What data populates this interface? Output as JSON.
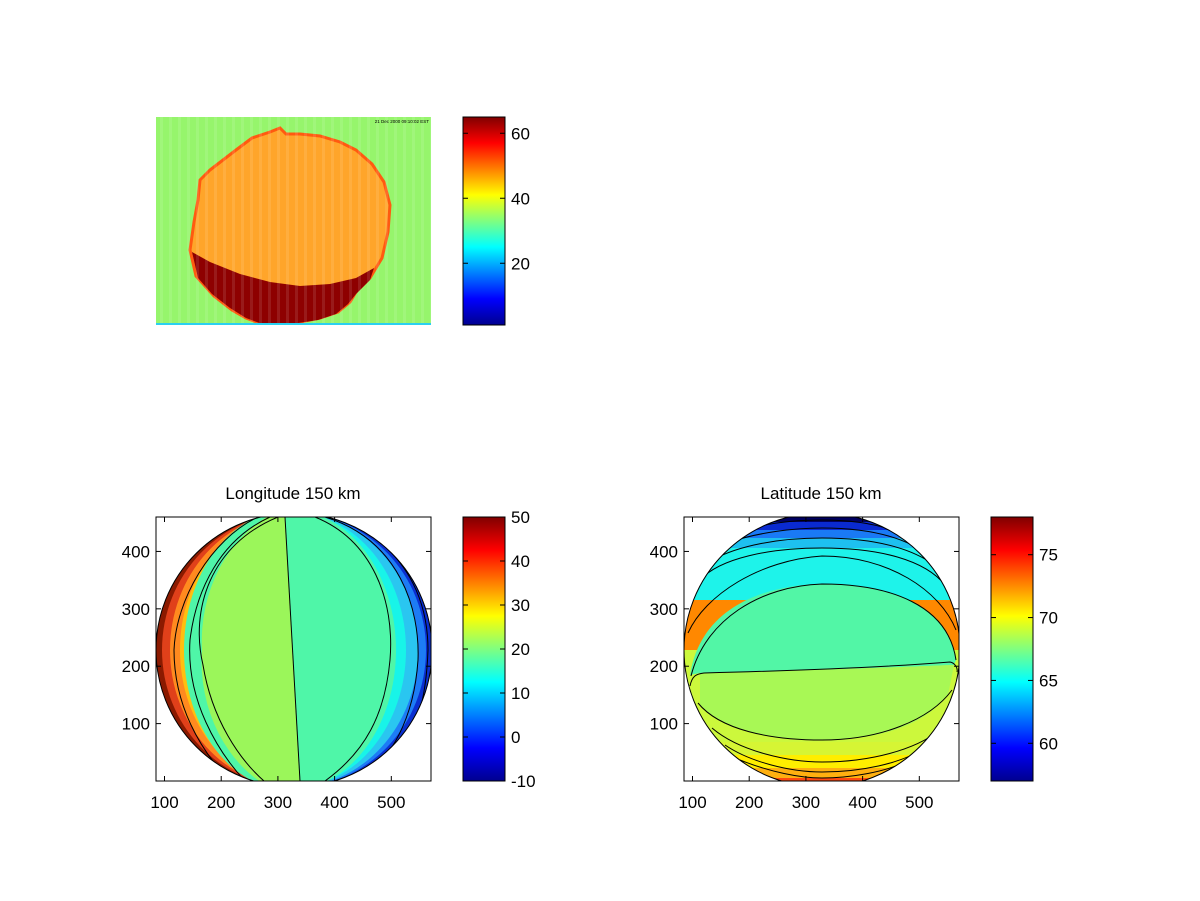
{
  "chart_data": [
    {
      "type": "heatmap",
      "title": "",
      "xlabel": "",
      "ylabel": "",
      "x_ticks": [],
      "y_ticks": [],
      "colorbar": {
        "colormap": "jet",
        "range": [
          1,
          65
        ],
        "ticks": [
          20,
          40,
          60
        ]
      },
      "grid": false,
      "description_values": {
        "background_level": 35,
        "disk_level": 48,
        "edge_high_level": 62,
        "corner_text": "21 Dec 2000 09:10:02 EST"
      }
    },
    {
      "type": "heatmap",
      "title": "Longitude 150 km",
      "xlabel": "",
      "ylabel": "",
      "xlim": [
        85,
        570
      ],
      "ylim": [
        0,
        460
      ],
      "x_ticks": [
        100,
        200,
        300,
        400,
        500
      ],
      "y_ticks": [
        100,
        200,
        300,
        400
      ],
      "colorbar": {
        "colormap": "jet",
        "range": [
          -10,
          50
        ],
        "ticks": [
          -10,
          0,
          10,
          20,
          30,
          40,
          50
        ]
      },
      "contour_levels": [
        -5,
        0,
        5,
        10,
        15,
        20,
        25,
        30,
        35,
        40,
        45
      ],
      "grid": false
    },
    {
      "type": "heatmap",
      "title": "Latitude 150 km",
      "xlabel": "",
      "ylabel": "",
      "xlim": [
        85,
        570
      ],
      "ylim": [
        0,
        460
      ],
      "x_ticks": [
        100,
        200,
        300,
        400,
        500
      ],
      "y_ticks": [
        100,
        200,
        300,
        400
      ],
      "colorbar": {
        "colormap": "jet",
        "range": [
          57,
          78
        ],
        "ticks": [
          60,
          65,
          70,
          75
        ]
      },
      "contour_levels": [
        58,
        59,
        60,
        61,
        62,
        63,
        64,
        65,
        66,
        67,
        68,
        69,
        70,
        71,
        72
      ],
      "grid": false
    }
  ]
}
